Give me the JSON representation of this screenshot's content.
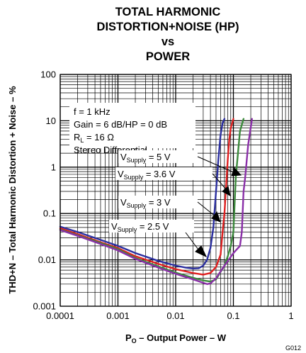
{
  "chart_data": {
    "type": "line",
    "title": [
      "TOTAL HARMONIC",
      "DISTORTION+NOISE (HP)",
      "vs",
      "POWER"
    ],
    "xlabel": {
      "main": "P",
      "sub": "O",
      "rest": " – Output Power – W"
    },
    "ylabel": "THD+N – Total Harmonic Distortion + Noise – %",
    "x_scale": "log",
    "y_scale": "log",
    "xlim": [
      0.0001,
      1
    ],
    "ylim": [
      0.001,
      100
    ],
    "x_ticks": [
      0.0001,
      0.001,
      0.01,
      0.1,
      1
    ],
    "x_tick_labels": [
      "0.0001",
      "0.001",
      "0.01",
      "0.1",
      "1"
    ],
    "y_ticks": [
      0.001,
      0.01,
      0.1,
      1,
      10,
      100
    ],
    "y_tick_labels": [
      "0.001",
      "0.01",
      "0.1",
      "1",
      "10",
      "100"
    ],
    "grid": true,
    "conditions": [
      {
        "text": "f = 1 kHz"
      },
      {
        "text": "Gain = 6 dB/HP = 0 dB"
      },
      {
        "text": "R",
        "sub": "L",
        "rest": " = 16 Ω"
      },
      {
        "text": "Stereo Differential"
      }
    ],
    "figure_id": "G012",
    "series": [
      {
        "name": "VSupply = 2.5 V",
        "color": "#2b2fa0",
        "x": [
          0.0001,
          0.0002,
          0.0005,
          0.001,
          0.002,
          0.005,
          0.01,
          0.015,
          0.02,
          0.025,
          0.03,
          0.035,
          0.04,
          0.045,
          0.05,
          0.055,
          0.06,
          0.065,
          0.07
        ],
        "y": [
          0.052,
          0.04,
          0.027,
          0.02,
          0.014,
          0.0095,
          0.0075,
          0.0068,
          0.0065,
          0.0066,
          0.0075,
          0.01,
          0.018,
          0.05,
          0.3,
          1.5,
          5,
          9,
          11
        ]
      },
      {
        "name": "VSupply = 3 V",
        "color": "#e02020",
        "x": [
          0.0001,
          0.0002,
          0.0005,
          0.001,
          0.002,
          0.005,
          0.01,
          0.02,
          0.03,
          0.04,
          0.05,
          0.06,
          0.065,
          0.07,
          0.075,
          0.08,
          0.085,
          0.09,
          0.1
        ],
        "y": [
          0.048,
          0.036,
          0.024,
          0.018,
          0.012,
          0.0082,
          0.0063,
          0.0052,
          0.0048,
          0.0052,
          0.007,
          0.013,
          0.04,
          0.1,
          0.4,
          1.5,
          4,
          7,
          11
        ]
      },
      {
        "name": "VSupply = 3.6 V",
        "color": "#3c8a3c",
        "x": [
          0.0001,
          0.0002,
          0.0005,
          0.001,
          0.002,
          0.005,
          0.01,
          0.02,
          0.03,
          0.04,
          0.05,
          0.06,
          0.07,
          0.08,
          0.09,
          0.1,
          0.11,
          0.12,
          0.13,
          0.15
        ],
        "y": [
          0.045,
          0.034,
          0.023,
          0.017,
          0.011,
          0.0072,
          0.0053,
          0.0041,
          0.0036,
          0.0034,
          0.0038,
          0.0055,
          0.0075,
          0.012,
          0.02,
          0.04,
          0.6,
          2,
          6,
          11
        ]
      },
      {
        "name": "VSupply = 5 V",
        "color": "#8a2fa8",
        "x": [
          0.0001,
          0.0002,
          0.0005,
          0.001,
          0.002,
          0.005,
          0.01,
          0.02,
          0.03,
          0.035,
          0.04,
          0.05,
          0.07,
          0.1,
          0.13,
          0.14,
          0.15,
          0.16,
          0.18,
          0.21
        ],
        "y": [
          0.044,
          0.033,
          0.022,
          0.016,
          0.0105,
          0.0068,
          0.005,
          0.0038,
          0.0032,
          0.003,
          0.0031,
          0.004,
          0.0075,
          0.014,
          0.02,
          0.04,
          0.3,
          0.6,
          3,
          11
        ]
      }
    ],
    "callouts": [
      {
        "prefix": "V",
        "sub": "Supply",
        "value": " = 5 V"
      },
      {
        "prefix": "V",
        "sub": "Supply",
        "value": " = 3.6 V"
      },
      {
        "prefix": "V",
        "sub": "Supply",
        "value": " = 3 V"
      },
      {
        "prefix": "V",
        "sub": "Supply",
        "value": " = 2.5 V"
      }
    ]
  }
}
